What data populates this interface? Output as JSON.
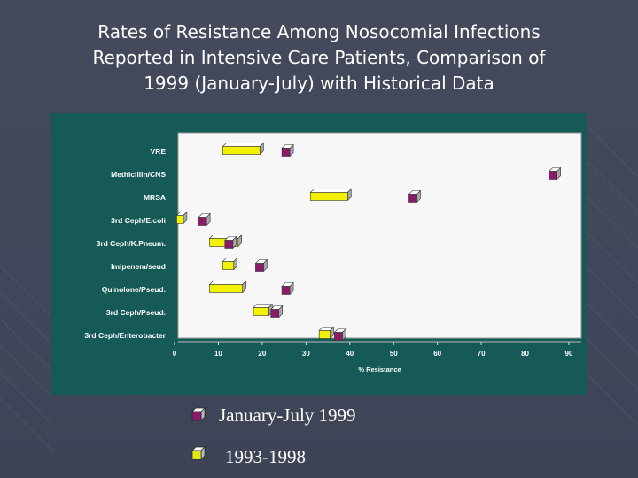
{
  "title_lines": [
    "Rates of Resistance Among Nosocomial Infections",
    "Reported in Intensive Care Patients, Comparison of",
    "1999 (January-July) with Historical Data"
  ],
  "legend": [
    {
      "label": "January-July 1999",
      "color": "#8b1a6b"
    },
    {
      "label": "1993-1998",
      "color": "#dfe61a"
    }
  ],
  "colors": {
    "panel": "#155a57",
    "plot_area": "#f7f7f7",
    "series_1999": "#8b1a6b",
    "series_hist": "#f2f200"
  },
  "chart_data": {
    "type": "bar",
    "title": "",
    "xlabel": "% Resistance",
    "ylabel": "",
    "xlim": [
      0,
      90
    ],
    "xticks": [
      0,
      10,
      20,
      30,
      40,
      50,
      60,
      70,
      80,
      90
    ],
    "grid": false,
    "categories": [
      "VRE",
      "Methicillin/CNS",
      "MRSA",
      "3rd Ceph/E.coli",
      "3rd Ceph/K.Pneum.",
      "Imipenem/seud",
      "Quinolone/Pseud.",
      "3rd Ceph/Pseud.",
      "3rd Ceph/Enterobacter"
    ],
    "series": [
      {
        "name": "January-July 1999",
        "values": [
          25.5,
          86.5,
          54.5,
          6.5,
          12.5,
          19.5,
          25.5,
          23.0,
          37.5
        ]
      },
      {
        "name": "1993-1998",
        "values": [
          19.5,
          0,
          39.5,
          2.0,
          14.5,
          13.5,
          15.5,
          21.5,
          35.5
        ]
      }
    ]
  }
}
